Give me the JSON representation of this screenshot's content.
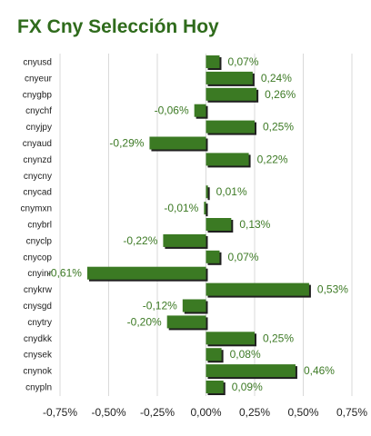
{
  "chart_data": {
    "type": "bar",
    "orientation": "horizontal",
    "title": "FX Cny Selección Hoy",
    "categories": [
      "cnyusd",
      "cnyeur",
      "cnygbp",
      "cnychf",
      "cnyjpy",
      "cnyaud",
      "cnynzd",
      "cnycny",
      "cnycad",
      "cnymxn",
      "cnybrl",
      "cnyclp",
      "cnycop",
      "cnyinr",
      "cnykrw",
      "cnysgd",
      "cnytry",
      "cnydkk",
      "cnysek",
      "cnynok",
      "cnypln"
    ],
    "values": [
      0.07,
      0.24,
      0.26,
      -0.06,
      0.25,
      -0.29,
      0.22,
      null,
      0.01,
      -0.01,
      0.13,
      -0.22,
      0.07,
      -0.61,
      0.53,
      -0.12,
      -0.2,
      0.25,
      0.08,
      0.46,
      0.09
    ],
    "data_labels": [
      "0,07%",
      "0,24%",
      "0,26%",
      "-0,06%",
      "0,25%",
      "-0,29%",
      "0,22%",
      "",
      "0,01%",
      "-0,01%",
      "0,13%",
      "-0,22%",
      "0,07%",
      "-0,61%",
      "0,53%",
      "-0,12%",
      "-0,20%",
      "0,25%",
      "0,08%",
      "0,46%",
      "0,09%"
    ],
    "xlim": [
      -0.75,
      0.75
    ],
    "xticks": [
      "-0,75%",
      "-0,50%",
      "-0,25%",
      "0,00%",
      "0,25%",
      "0,50%",
      "0,75%"
    ],
    "xlabel": "",
    "ylabel": "",
    "grid": true,
    "colors": {
      "bar": "#3b7a23",
      "bar_shadow": "#1f1f1f",
      "label": "#3d7a25",
      "title": "#2f6b1c",
      "grid": "#d9d9d9"
    }
  }
}
